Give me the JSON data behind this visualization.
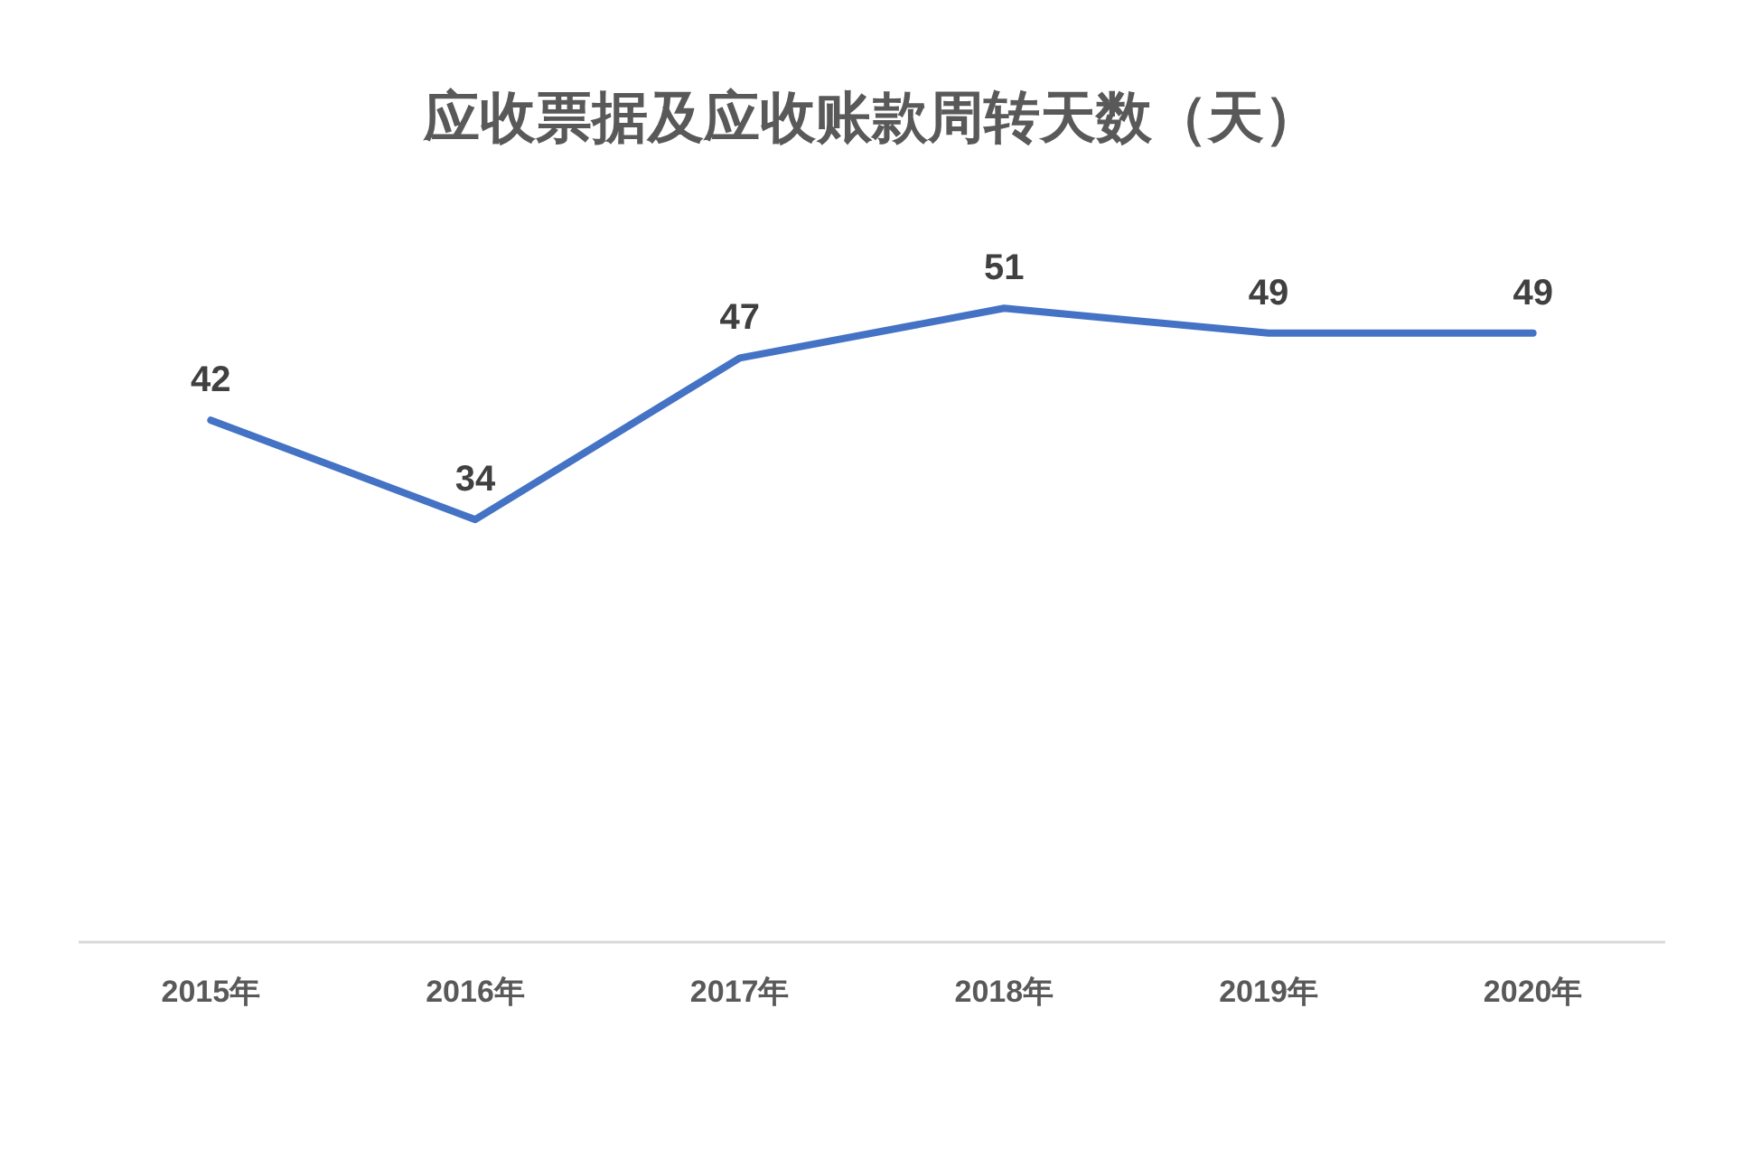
{
  "chart_data": {
    "type": "line",
    "title": "应收票据及应收账款周转天数（天）",
    "categories": [
      "2015年",
      "2016年",
      "2017年",
      "2018年",
      "2019年",
      "2020年"
    ],
    "series": [
      {
        "color": "#4472c4",
        "values": [
          42,
          34,
          47,
          51,
          49,
          49
        ]
      }
    ],
    "tick_labels": "x",
    "data_labels": true,
    "grid": false,
    "marker": "none",
    "line_style": "solid"
  }
}
